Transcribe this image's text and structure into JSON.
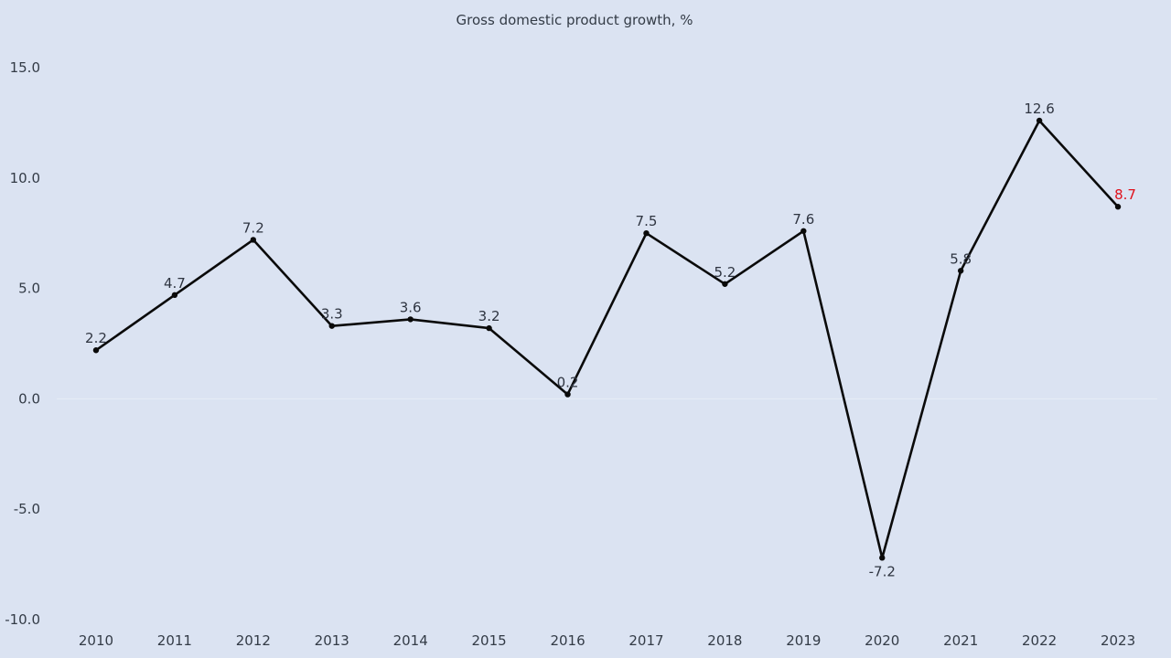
{
  "chart_data": {
    "type": "line",
    "title": "Gross domestic product growth, %",
    "xlabel": "",
    "ylabel": "",
    "ylim": [
      -10,
      15
    ],
    "yticks": [
      "15.0",
      "10.0",
      "5.0",
      "0.0",
      "-5.0",
      "-10.0"
    ],
    "ytick_values": [
      15,
      10,
      5,
      0,
      -5,
      -10
    ],
    "categories": [
      "2010",
      "2011",
      "2012",
      "2013",
      "2014",
      "2015",
      "2016",
      "2017",
      "2018",
      "2019",
      "2020",
      "2021",
      "2022",
      "2023"
    ],
    "series": [
      {
        "values": [
          2.2,
          4.7,
          7.2,
          3.3,
          3.6,
          3.2,
          0.2,
          7.5,
          5.2,
          7.6,
          -7.2,
          5.8,
          12.6,
          8.7
        ],
        "labels": [
          "2.2",
          "4.7",
          "7.2",
          "3.3",
          "3.6",
          "3.2",
          "0.2",
          "7.5",
          "5.2",
          "7.6",
          "-7.2",
          "5.8",
          "12.6",
          "8.7"
        ]
      }
    ],
    "highlight_index": 13,
    "grid": false,
    "legend": "none",
    "colors": {
      "background": "#dbe3f2",
      "line": "#0a0a0a",
      "text": "#333b46",
      "highlight": "#e0101a",
      "zero_line": "#e8edf6"
    }
  }
}
